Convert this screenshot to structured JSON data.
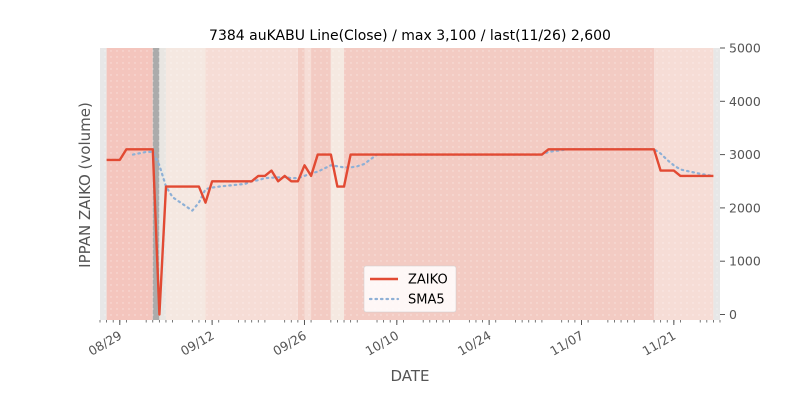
{
  "chart_data": {
    "type": "line",
    "title": "7384 auKABU Line(Close) / max 3,100 / last(11/26) 2,600",
    "xlabel": "DATE",
    "ylabel": "IPPAN ZAIKO (volume)",
    "ylim": [
      0,
      5000
    ],
    "xlim": [
      "2024-08-26",
      "2024-11-28"
    ],
    "y_ticks": [
      0,
      1000,
      2000,
      3000,
      4000,
      5000
    ],
    "x_ticks": [
      {
        "date": "2024-08-29",
        "label": "08/29"
      },
      {
        "date": "2024-09-12",
        "label": "09/12"
      },
      {
        "date": "2024-09-26",
        "label": "09/26"
      },
      {
        "date": "2024-10-10",
        "label": "10/10"
      },
      {
        "date": "2024-10-24",
        "label": "10/24"
      },
      {
        "date": "2024-11-07",
        "label": "11/07"
      },
      {
        "date": "2024-11-21",
        "label": "11/21"
      }
    ],
    "grid": false,
    "legend_position": "bottom-center",
    "series": [
      {
        "name": "ZAIKO",
        "color": "#e24a33",
        "style": "solid",
        "points": [
          [
            "2024-08-27",
            2900
          ],
          [
            "2024-08-29",
            2900
          ],
          [
            "2024-08-30",
            3100
          ],
          [
            "2024-09-02",
            3100
          ],
          [
            "2024-09-03",
            3100
          ],
          [
            "2024-09-04",
            0
          ],
          [
            "2024-09-05",
            2400
          ],
          [
            "2024-09-06",
            2400
          ],
          [
            "2024-09-09",
            2400
          ],
          [
            "2024-09-10",
            2400
          ],
          [
            "2024-09-11",
            2100
          ],
          [
            "2024-09-12",
            2500
          ],
          [
            "2024-09-13",
            2500
          ],
          [
            "2024-09-17",
            2500
          ],
          [
            "2024-09-18",
            2500
          ],
          [
            "2024-09-19",
            2600
          ],
          [
            "2024-09-20",
            2600
          ],
          [
            "2024-09-21",
            2700
          ],
          [
            "2024-09-22",
            2500
          ],
          [
            "2024-09-23",
            2600
          ],
          [
            "2024-09-24",
            2500
          ],
          [
            "2024-09-25",
            2500
          ],
          [
            "2024-09-26",
            2800
          ],
          [
            "2024-09-27",
            2600
          ],
          [
            "2024-09-28",
            3000
          ],
          [
            "2024-09-30",
            3000
          ],
          [
            "2024-10-01",
            2400
          ],
          [
            "2024-10-02",
            2400
          ],
          [
            "2024-10-03",
            3000
          ],
          [
            "2024-10-10",
            3000
          ],
          [
            "2024-10-24",
            3000
          ],
          [
            "2024-11-01",
            3000
          ],
          [
            "2024-11-02",
            3100
          ],
          [
            "2024-11-07",
            3100
          ],
          [
            "2024-11-18",
            3100
          ],
          [
            "2024-11-19",
            2700
          ],
          [
            "2024-11-21",
            2700
          ],
          [
            "2024-11-22",
            2600
          ],
          [
            "2024-11-26",
            2600
          ],
          [
            "2024-11-27",
            2600
          ]
        ]
      },
      {
        "name": "SMA5",
        "color": "#8eb0d6",
        "style": "dotted",
        "points": [
          [
            "2024-08-31",
            3000
          ],
          [
            "2024-09-02",
            3050
          ],
          [
            "2024-09-03",
            3050
          ],
          [
            "2024-09-04",
            2800
          ],
          [
            "2024-09-05",
            2400
          ],
          [
            "2024-09-06",
            2200
          ],
          [
            "2024-09-09",
            1950
          ],
          [
            "2024-09-10",
            2100
          ],
          [
            "2024-09-11",
            2350
          ],
          [
            "2024-09-12",
            2380
          ],
          [
            "2024-09-13",
            2400
          ],
          [
            "2024-09-17",
            2450
          ],
          [
            "2024-09-18",
            2500
          ],
          [
            "2024-09-19",
            2520
          ],
          [
            "2024-09-20",
            2560
          ],
          [
            "2024-09-23",
            2580
          ],
          [
            "2024-09-24",
            2560
          ],
          [
            "2024-09-25",
            2560
          ],
          [
            "2024-09-26",
            2600
          ],
          [
            "2024-09-27",
            2650
          ],
          [
            "2024-09-28",
            2680
          ],
          [
            "2024-09-30",
            2800
          ],
          [
            "2024-10-01",
            2780
          ],
          [
            "2024-10-02",
            2760
          ],
          [
            "2024-10-03",
            2760
          ],
          [
            "2024-10-04",
            2780
          ],
          [
            "2024-10-05",
            2820
          ],
          [
            "2024-10-07",
            3000
          ],
          [
            "2024-10-10",
            3000
          ],
          [
            "2024-10-24",
            3000
          ],
          [
            "2024-11-01",
            3000
          ],
          [
            "2024-11-02",
            3050
          ],
          [
            "2024-11-05",
            3100
          ],
          [
            "2024-11-07",
            3100
          ],
          [
            "2024-11-18",
            3100
          ],
          [
            "2024-11-19",
            3020
          ],
          [
            "2024-11-20",
            2900
          ],
          [
            "2024-11-21",
            2800
          ],
          [
            "2024-11-22",
            2720
          ],
          [
            "2024-11-25",
            2640
          ],
          [
            "2024-11-26",
            2620
          ],
          [
            "2024-11-27",
            2600
          ]
        ]
      }
    ],
    "background_bands": [
      {
        "from": "2024-08-26",
        "to": "2024-08-27",
        "color": "#e7e7e7"
      },
      {
        "from": "2024-08-27",
        "to": "2024-09-03",
        "color": "#f4c5bd"
      },
      {
        "from": "2024-09-03",
        "to": "2024-09-04",
        "color": "#ababab"
      },
      {
        "from": "2024-09-04",
        "to": "2024-09-05",
        "color": "#e9e6e2"
      },
      {
        "from": "2024-09-05",
        "to": "2024-09-11",
        "color": "#f5e8e1"
      },
      {
        "from": "2024-09-11",
        "to": "2024-09-25",
        "color": "#f6ddd6"
      },
      {
        "from": "2024-09-25",
        "to": "2024-09-26",
        "color": "#f3cdc4"
      },
      {
        "from": "2024-09-26",
        "to": "2024-09-27",
        "color": "#f6ddd6"
      },
      {
        "from": "2024-09-27",
        "to": "2024-09-30",
        "color": "#f3cbc3"
      },
      {
        "from": "2024-09-30",
        "to": "2024-10-02",
        "color": "#f5e9e1"
      },
      {
        "from": "2024-10-02",
        "to": "2024-11-18",
        "color": "#f3cbc3"
      },
      {
        "from": "2024-11-18",
        "to": "2024-11-27",
        "color": "#f6ddd6"
      },
      {
        "from": "2024-11-27",
        "to": "2024-11-28",
        "color": "#e7e7e7"
      }
    ]
  }
}
